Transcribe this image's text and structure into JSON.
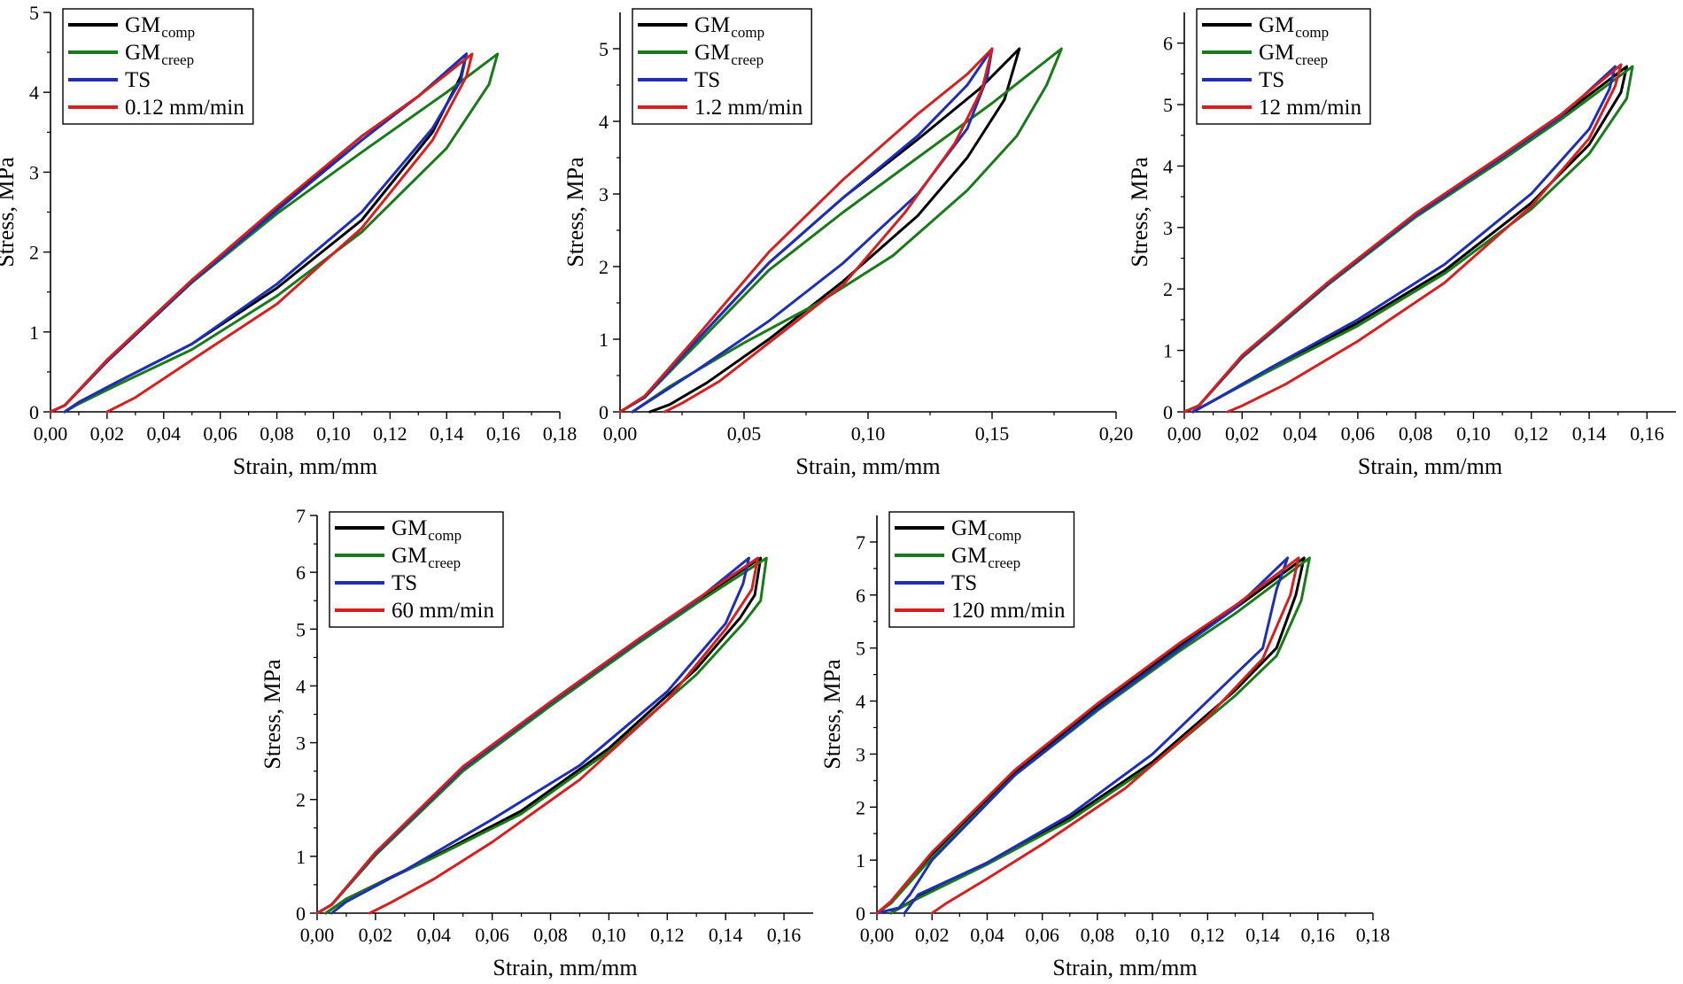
{
  "chart_data": [
    {
      "type": "line",
      "xlabel": "Strain, mm/mm",
      "ylabel": "Stress, MPa",
      "xlim": [
        0,
        0.18
      ],
      "ylim": [
        0,
        5
      ],
      "xticks": [
        0,
        0.02,
        0.04,
        0.06,
        0.08,
        0.1,
        0.12,
        0.14,
        0.16,
        0.18
      ],
      "xtick_labels": [
        "0,00",
        "0,02",
        "0,04",
        "0,06",
        "0,08",
        "0,10",
        "0,12",
        "0,14",
        "0,16",
        "0,18"
      ],
      "yticks": [
        0,
        1,
        2,
        3,
        4,
        5
      ],
      "ytick_labels": [
        "0",
        "1",
        "2",
        "3",
        "4",
        "5"
      ],
      "legend_position": "top-left",
      "series": [
        {
          "name": "GM",
          "sub": "comp",
          "color": "#000000",
          "x": [
            0.0,
            0.005,
            0.02,
            0.05,
            0.08,
            0.11,
            0.13,
            0.147,
            0.145,
            0.135,
            0.11,
            0.08,
            0.05,
            0.025,
            0.01,
            0.005
          ],
          "y": [
            0.0,
            0.08,
            0.65,
            1.65,
            2.55,
            3.45,
            3.95,
            4.48,
            4.2,
            3.5,
            2.4,
            1.55,
            0.85,
            0.4,
            0.12,
            0.0
          ]
        },
        {
          "name": "GM",
          "sub": "creep",
          "color": "#1a7a1a",
          "x": [
            0.0,
            0.005,
            0.02,
            0.05,
            0.08,
            0.11,
            0.14,
            0.158,
            0.155,
            0.14,
            0.11,
            0.08,
            0.05,
            0.025,
            0.01,
            0.005
          ],
          "y": [
            0.0,
            0.08,
            0.63,
            1.62,
            2.48,
            3.25,
            4.0,
            4.48,
            4.1,
            3.3,
            2.25,
            1.45,
            0.78,
            0.36,
            0.1,
            0.0
          ]
        },
        {
          "name": "TS",
          "sub": "",
          "color": "#1f2fb5",
          "x": [
            0.0,
            0.005,
            0.02,
            0.05,
            0.08,
            0.11,
            0.13,
            0.147,
            0.145,
            0.135,
            0.11,
            0.08,
            0.05,
            0.025,
            0.01,
            0.005
          ],
          "y": [
            0.0,
            0.08,
            0.63,
            1.63,
            2.52,
            3.4,
            3.95,
            4.48,
            4.15,
            3.55,
            2.5,
            1.6,
            0.85,
            0.4,
            0.12,
            0.0
          ]
        },
        {
          "name": "0.12 mm/min",
          "sub": "",
          "color": "#d42020",
          "x": [
            0.0,
            0.005,
            0.02,
            0.05,
            0.08,
            0.11,
            0.13,
            0.149,
            0.147,
            0.135,
            0.11,
            0.08,
            0.05,
            0.03,
            0.02
          ],
          "y": [
            0.0,
            0.08,
            0.65,
            1.65,
            2.57,
            3.45,
            3.95,
            4.48,
            4.2,
            3.4,
            2.3,
            1.35,
            0.65,
            0.18,
            0.0
          ]
        }
      ]
    },
    {
      "type": "line",
      "xlabel": "Strain, mm/mm",
      "ylabel": "Stress, MPa",
      "xlim": [
        0,
        0.2
      ],
      "ylim": [
        0,
        5.5
      ],
      "xticks": [
        0,
        0.05,
        0.1,
        0.15,
        0.2
      ],
      "xtick_labels": [
        "0,00",
        "0,05",
        "0,10",
        "0,15",
        "0,20"
      ],
      "yticks": [
        0,
        1,
        2,
        3,
        4,
        5
      ],
      "ytick_labels": [
        "0",
        "1",
        "2",
        "3",
        "4",
        "5"
      ],
      "legend_position": "top-left",
      "series": [
        {
          "name": "GM",
          "sub": "comp",
          "color": "#000000",
          "x": [
            0.0,
            0.01,
            0.03,
            0.06,
            0.09,
            0.12,
            0.145,
            0.161,
            0.155,
            0.14,
            0.12,
            0.09,
            0.06,
            0.035,
            0.02,
            0.012
          ],
          "y": [
            0.0,
            0.2,
            0.95,
            2.05,
            2.95,
            3.75,
            4.45,
            5.0,
            4.3,
            3.5,
            2.7,
            1.8,
            1.0,
            0.4,
            0.1,
            0.0
          ]
        },
        {
          "name": "GM",
          "sub": "creep",
          "color": "#1a7a1a",
          "x": [
            0.0,
            0.01,
            0.03,
            0.06,
            0.09,
            0.12,
            0.15,
            0.178,
            0.172,
            0.16,
            0.14,
            0.11,
            0.08,
            0.05,
            0.02,
            0.005
          ],
          "y": [
            0.0,
            0.2,
            0.9,
            1.95,
            2.75,
            3.5,
            4.25,
            5.0,
            4.5,
            3.8,
            3.05,
            2.15,
            1.5,
            0.95,
            0.35,
            0.0
          ]
        },
        {
          "name": "TS",
          "sub": "",
          "color": "#1f2fb5",
          "x": [
            0.0,
            0.01,
            0.03,
            0.06,
            0.09,
            0.12,
            0.14,
            0.15,
            0.148,
            0.14,
            0.12,
            0.09,
            0.06,
            0.03,
            0.005
          ],
          "y": [
            0.0,
            0.2,
            0.95,
            2.05,
            2.95,
            3.8,
            4.5,
            5.0,
            4.6,
            3.9,
            3.0,
            2.05,
            1.25,
            0.55,
            0.0
          ]
        },
        {
          "name": "1.2 mm/min",
          "sub": "",
          "color": "#d42020",
          "x": [
            0.0,
            0.01,
            0.03,
            0.06,
            0.09,
            0.12,
            0.14,
            0.15,
            0.146,
            0.135,
            0.115,
            0.09,
            0.06,
            0.04,
            0.025,
            0.018
          ],
          "y": [
            0.0,
            0.22,
            1.0,
            2.2,
            3.2,
            4.1,
            4.65,
            5.0,
            4.45,
            3.7,
            2.75,
            1.75,
            0.95,
            0.42,
            0.12,
            0.0
          ]
        }
      ]
    },
    {
      "type": "line",
      "xlabel": "Strain, mm/mm",
      "ylabel": "Stress, MPa",
      "xlim": [
        0,
        0.17
      ],
      "ylim": [
        0,
        6.5
      ],
      "xticks": [
        0,
        0.02,
        0.04,
        0.06,
        0.08,
        0.1,
        0.12,
        0.14,
        0.16
      ],
      "xtick_labels": [
        "0,00",
        "0,02",
        "0,04",
        "0,06",
        "0,08",
        "0,10",
        "0,12",
        "0,14",
        "0,16"
      ],
      "yticks": [
        0,
        1,
        2,
        3,
        4,
        5,
        6
      ],
      "ytick_labels": [
        "0",
        "1",
        "2",
        "3",
        "4",
        "5",
        "6"
      ],
      "legend_position": "top-left",
      "series": [
        {
          "name": "GM",
          "sub": "comp",
          "color": "#000000",
          "x": [
            0.0,
            0.005,
            0.02,
            0.05,
            0.08,
            0.11,
            0.13,
            0.153,
            0.151,
            0.14,
            0.12,
            0.09,
            0.06,
            0.03,
            0.01,
            0.003
          ],
          "y": [
            0.0,
            0.1,
            0.9,
            2.1,
            3.2,
            4.15,
            4.8,
            5.62,
            5.2,
            4.35,
            3.4,
            2.3,
            1.45,
            0.7,
            0.18,
            0.0
          ]
        },
        {
          "name": "GM",
          "sub": "creep",
          "color": "#1a7a1a",
          "x": [
            0.0,
            0.005,
            0.02,
            0.05,
            0.08,
            0.11,
            0.13,
            0.155,
            0.153,
            0.14,
            0.12,
            0.09,
            0.06,
            0.03,
            0.01,
            0.003
          ],
          "y": [
            0.0,
            0.1,
            0.88,
            2.08,
            3.17,
            4.1,
            4.75,
            5.62,
            5.1,
            4.2,
            3.3,
            2.25,
            1.4,
            0.68,
            0.18,
            0.0
          ]
        },
        {
          "name": "TS",
          "sub": "",
          "color": "#1f2fb5",
          "x": [
            0.0,
            0.005,
            0.02,
            0.05,
            0.08,
            0.11,
            0.13,
            0.149,
            0.147,
            0.14,
            0.12,
            0.09,
            0.06,
            0.03,
            0.01,
            0.003
          ],
          "y": [
            0.0,
            0.1,
            0.9,
            2.1,
            3.2,
            4.15,
            4.8,
            5.62,
            5.25,
            4.6,
            3.55,
            2.4,
            1.5,
            0.72,
            0.18,
            0.0
          ]
        },
        {
          "name": "12 mm/min",
          "sub": "",
          "color": "#d42020",
          "x": [
            0.0,
            0.005,
            0.02,
            0.05,
            0.08,
            0.11,
            0.13,
            0.151,
            0.149,
            0.14,
            0.12,
            0.09,
            0.06,
            0.035,
            0.02,
            0.015
          ],
          "y": [
            0.0,
            0.1,
            0.92,
            2.12,
            3.23,
            4.18,
            4.83,
            5.65,
            5.3,
            4.45,
            3.35,
            2.1,
            1.15,
            0.45,
            0.1,
            0.0
          ]
        }
      ]
    },
    {
      "type": "line",
      "xlabel": "Strain, mm/mm",
      "ylabel": "Stress, MPa",
      "xlim": [
        0,
        0.17
      ],
      "ylim": [
        0,
        7
      ],
      "xticks": [
        0,
        0.02,
        0.04,
        0.06,
        0.08,
        0.1,
        0.12,
        0.14,
        0.16
      ],
      "xtick_labels": [
        "0,00",
        "0,02",
        "0,04",
        "0,06",
        "0,08",
        "0,10",
        "0,12",
        "0,14",
        "0,16"
      ],
      "yticks": [
        0,
        1,
        2,
        3,
        4,
        5,
        6,
        7
      ],
      "ytick_labels": [
        "0",
        "1",
        "2",
        "3",
        "4",
        "5",
        "6",
        "7"
      ],
      "legend_position": "top-left",
      "series": [
        {
          "name": "GM",
          "sub": "comp",
          "color": "#000000",
          "x": [
            0.0,
            0.005,
            0.02,
            0.05,
            0.08,
            0.11,
            0.13,
            0.152,
            0.15,
            0.145,
            0.13,
            0.1,
            0.07,
            0.04,
            0.01,
            0.003
          ],
          "y": [
            0.0,
            0.15,
            1.05,
            2.55,
            3.7,
            4.8,
            5.5,
            6.25,
            5.6,
            5.2,
            4.3,
            2.9,
            1.8,
            1.0,
            0.25,
            0.0
          ]
        },
        {
          "name": "GM",
          "sub": "creep",
          "color": "#1a7a1a",
          "x": [
            0.0,
            0.005,
            0.02,
            0.05,
            0.08,
            0.11,
            0.13,
            0.154,
            0.152,
            0.146,
            0.13,
            0.1,
            0.07,
            0.04,
            0.01,
            0.003
          ],
          "y": [
            0.0,
            0.15,
            1.02,
            2.5,
            3.65,
            4.75,
            5.45,
            6.25,
            5.5,
            5.1,
            4.2,
            2.85,
            1.75,
            0.98,
            0.25,
            0.0
          ]
        },
        {
          "name": "TS",
          "sub": "",
          "color": "#1f2fb5",
          "x": [
            0.0,
            0.005,
            0.02,
            0.05,
            0.08,
            0.11,
            0.13,
            0.148,
            0.146,
            0.14,
            0.12,
            0.09,
            0.06,
            0.03,
            0.01,
            0.005
          ],
          "y": [
            0.0,
            0.15,
            1.05,
            2.55,
            3.7,
            4.8,
            5.5,
            6.25,
            5.8,
            5.1,
            3.9,
            2.6,
            1.65,
            0.75,
            0.2,
            0.0
          ]
        },
        {
          "name": "60 mm/min",
          "sub": "",
          "color": "#d42020",
          "x": [
            0.0,
            0.005,
            0.02,
            0.05,
            0.08,
            0.11,
            0.13,
            0.151,
            0.149,
            0.14,
            0.12,
            0.09,
            0.06,
            0.04,
            0.025,
            0.018
          ],
          "y": [
            0.0,
            0.15,
            1.07,
            2.58,
            3.72,
            4.82,
            5.52,
            6.25,
            5.7,
            5.0,
            3.75,
            2.35,
            1.25,
            0.6,
            0.18,
            0.0
          ]
        }
      ]
    },
    {
      "type": "line",
      "xlabel": "Strain, mm/mm",
      "ylabel": "Stress, MPa",
      "xlim": [
        0,
        0.18
      ],
      "ylim": [
        0,
        7.5
      ],
      "xticks": [
        0,
        0.02,
        0.04,
        0.06,
        0.08,
        0.1,
        0.12,
        0.14,
        0.16,
        0.18
      ],
      "xtick_labels": [
        "0,00",
        "0,02",
        "0,04",
        "0,06",
        "0,08",
        "0,10",
        "0,12",
        "0,14",
        "0,16",
        "0,18"
      ],
      "yticks": [
        0,
        1,
        2,
        3,
        4,
        5,
        6,
        7
      ],
      "ytick_labels": [
        "0",
        "1",
        "2",
        "3",
        "4",
        "5",
        "6",
        "7"
      ],
      "legend_position": "top-left",
      "series": [
        {
          "name": "GM",
          "sub": "comp",
          "color": "#000000",
          "x": [
            0.0,
            0.005,
            0.02,
            0.05,
            0.08,
            0.11,
            0.13,
            0.155,
            0.152,
            0.145,
            0.13,
            0.1,
            0.07,
            0.04,
            0.015,
            0.005
          ],
          "y": [
            0.0,
            0.2,
            1.1,
            2.65,
            3.9,
            5.05,
            5.75,
            6.7,
            6.0,
            5.0,
            4.2,
            2.85,
            1.8,
            0.95,
            0.3,
            0.0
          ]
        },
        {
          "name": "GM",
          "sub": "creep",
          "color": "#1a7a1a",
          "x": [
            0.0,
            0.005,
            0.02,
            0.05,
            0.08,
            0.11,
            0.13,
            0.157,
            0.154,
            0.145,
            0.13,
            0.1,
            0.07,
            0.04,
            0.015,
            0.005
          ],
          "y": [
            0.0,
            0.18,
            1.05,
            2.6,
            3.82,
            4.95,
            5.65,
            6.7,
            5.9,
            4.85,
            4.1,
            2.8,
            1.75,
            0.92,
            0.28,
            0.0
          ]
        },
        {
          "name": "TS",
          "sub": "",
          "color": "#1f2fb5",
          "x": [
            0.0,
            0.008,
            0.012,
            0.02,
            0.05,
            0.08,
            0.11,
            0.13,
            0.149,
            0.145,
            0.14,
            0.13,
            0.1,
            0.07,
            0.04,
            0.015,
            0.01
          ],
          "y": [
            0.0,
            0.1,
            0.35,
            1.0,
            2.6,
            3.85,
            5.0,
            5.75,
            6.7,
            6.1,
            5.0,
            4.5,
            3.0,
            1.85,
            0.95,
            0.35,
            0.0
          ]
        },
        {
          "name": "120 mm/min",
          "sub": "",
          "color": "#d42020",
          "x": [
            0.0,
            0.005,
            0.02,
            0.05,
            0.08,
            0.11,
            0.13,
            0.153,
            0.15,
            0.14,
            0.12,
            0.09,
            0.06,
            0.04,
            0.025,
            0.02
          ],
          "y": [
            0.0,
            0.22,
            1.15,
            2.7,
            3.95,
            5.1,
            5.8,
            6.7,
            6.0,
            4.8,
            3.7,
            2.35,
            1.3,
            0.65,
            0.18,
            0.0
          ]
        }
      ]
    }
  ]
}
